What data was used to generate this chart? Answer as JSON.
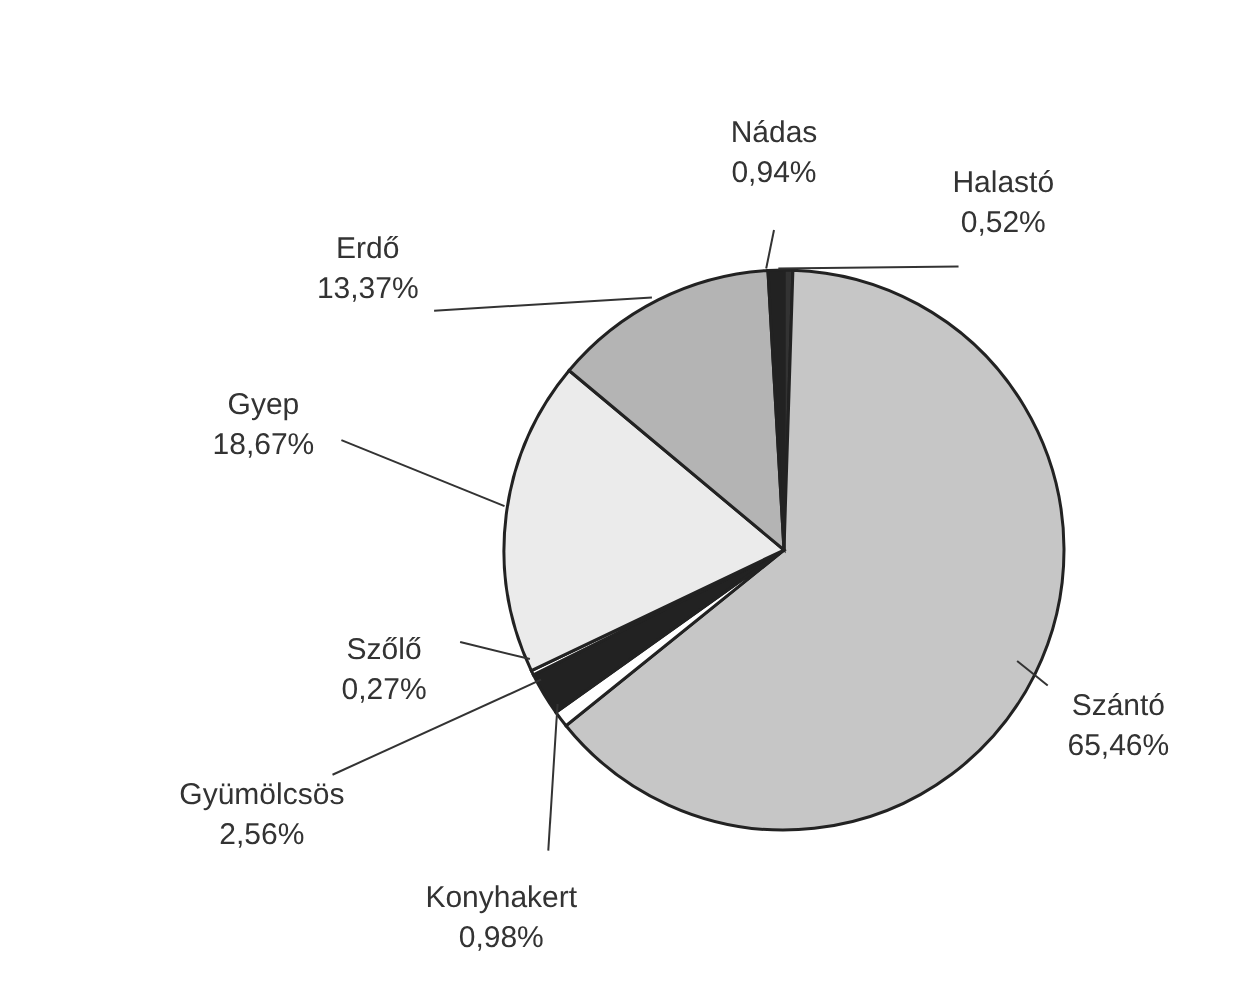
{
  "chart_data": {
    "type": "pie",
    "categories": [
      "Halastó",
      "Szántó",
      "Konyhakert",
      "Gyümölcsös",
      "Szőlő",
      "Gyep",
      "Erdő",
      "Nádas"
    ],
    "values": [
      0.52,
      65.46,
      0.98,
      2.56,
      0.27,
      18.67,
      13.37,
      0.94
    ],
    "value_labels": [
      "0,52%",
      "65,46%",
      "0,98%",
      "2,56%",
      "0,27%",
      "18,67%",
      "13,37%",
      "0,94%"
    ],
    "colors": [
      "#333333",
      "#c6c6c6",
      "#ffffff",
      "#222222",
      "#ffffff",
      "#ebebeb",
      "#b4b4b4",
      "#222222"
    ]
  }
}
